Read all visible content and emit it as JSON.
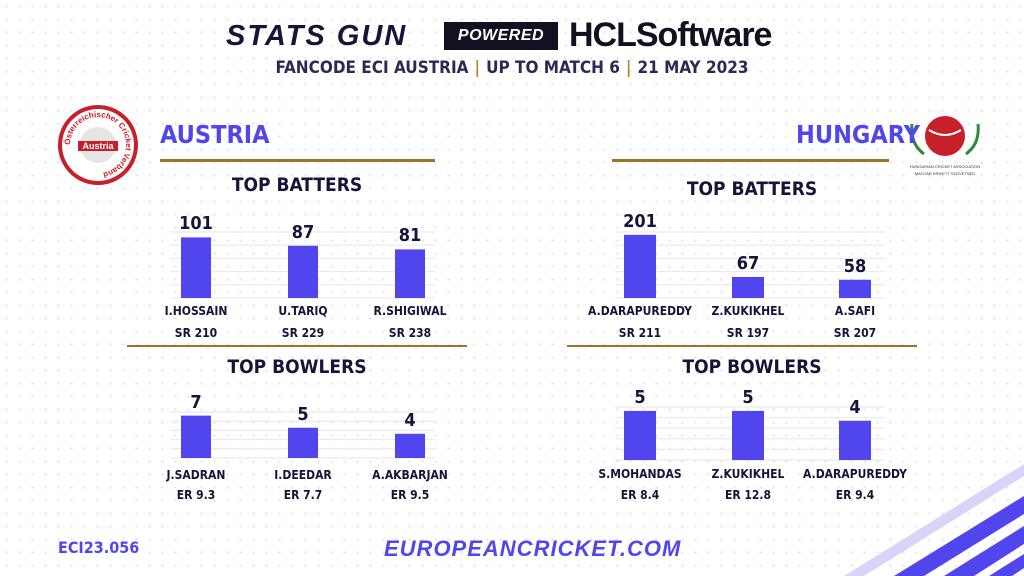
{
  "header": {
    "brand": "STATS GUN",
    "powered_by": "POWERED BY",
    "sponsor": "HCLSoftware",
    "subtitle_parts": [
      "FANCODE ECI AUSTRIA",
      "UP TO MATCH 6",
      "21 MAY 2023"
    ]
  },
  "teams": [
    {
      "name": "AUSTRIA",
      "logo_text": "Österreichischer Cricket Verband",
      "logo_center": "Austria"
    },
    {
      "name": "HUNGARY",
      "logo_text": "HUNGARIAN CRICKET ASSOCIATION",
      "logo_subtext": "MAGYAR KRIKETT SZÖVETSÉG"
    }
  ],
  "colors": {
    "bar": "#5146ee",
    "accent_line": "#9b7428",
    "brand": "#5146ee"
  },
  "chart_data": [
    {
      "type": "bar",
      "team": "AUSTRIA",
      "title": "TOP BATTERS",
      "categories": [
        "I.HOSSAIN",
        "U.TARIQ",
        "R.SHIGIWAL"
      ],
      "values": [
        101,
        87,
        81
      ],
      "sublabels": [
        "SR 210",
        "SR 229",
        "SR 238"
      ],
      "ylim": [
        0,
        110
      ]
    },
    {
      "type": "bar",
      "team": "AUSTRIA",
      "title": "TOP BOWLERS",
      "categories": [
        "J.SADRAN",
        "I.DEEDAR",
        "A.AKBARJAN"
      ],
      "values": [
        7,
        5,
        4
      ],
      "sublabels": [
        "ER 9.3",
        "ER 7.7",
        "ER 9.5"
      ],
      "ylim": [
        0,
        7.6
      ]
    },
    {
      "type": "bar",
      "team": "HUNGARY",
      "title": "TOP BATTERS",
      "categories": [
        "A.DARAPUREDDY",
        "Z.KUKIKHEL",
        "A.SAFI"
      ],
      "values": [
        201,
        67,
        58
      ],
      "sublabels": [
        "SR 211",
        "SR 197",
        "SR 207"
      ],
      "ylim": [
        0,
        210
      ]
    },
    {
      "type": "bar",
      "team": "HUNGARY",
      "title": "TOP BOWLERS",
      "categories": [
        "S.MOHANDAS",
        "Z.KUKIKHEL",
        "A.DARAPUREDDY"
      ],
      "values": [
        5,
        5,
        4
      ],
      "sublabels": [
        "ER 8.4",
        "ER 12.8",
        "ER 9.4"
      ],
      "ylim": [
        0,
        5.4
      ]
    }
  ],
  "footer": {
    "code": "ECI23.056",
    "website": "EUROPEANCRICKET.COM"
  }
}
